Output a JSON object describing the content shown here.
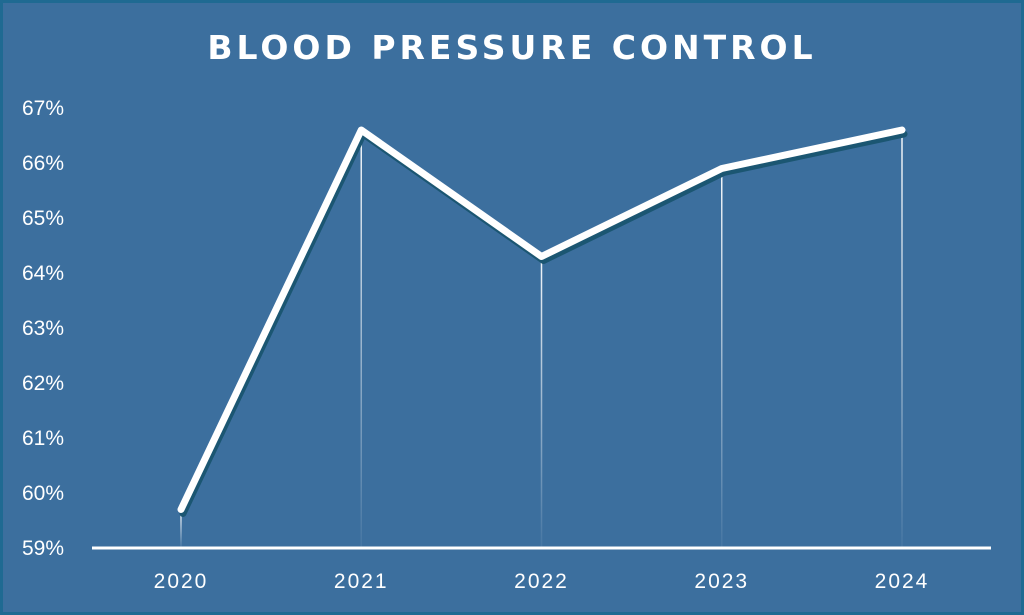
{
  "chart_data": {
    "type": "line",
    "title": "BLOOD PRESSURE CONTROL",
    "xlabel": "",
    "ylabel": "",
    "categories": [
      "2020",
      "2021",
      "2022",
      "2023",
      "2024"
    ],
    "series": [
      {
        "values": [
          59.7,
          66.6,
          64.3,
          65.9,
          66.6
        ]
      }
    ],
    "ylim": [
      59,
      67
    ],
    "ytick_labels": [
      "59%",
      "60%",
      "61%",
      "62%",
      "63%",
      "64%",
      "65%",
      "66%",
      "67%"
    ],
    "grid": false,
    "drop_lines": true,
    "colors": {
      "background": "#3c6f9e",
      "border": "#1f6a92",
      "line": "#ffffff",
      "shadow": "#1b5672",
      "text": "#ffffff"
    }
  }
}
